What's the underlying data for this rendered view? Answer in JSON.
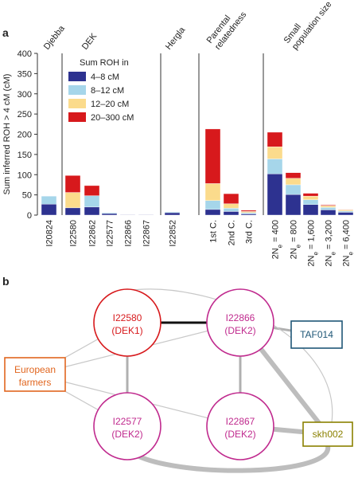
{
  "chart_data": {
    "type": "bar",
    "panel_label": "a",
    "ylabel": "Sum inferred ROH > 4 cM (cM)",
    "ylim": [
      0,
      400
    ],
    "yticks": [
      0,
      50,
      100,
      150,
      200,
      250,
      300,
      350,
      400
    ],
    "legend": {
      "title": "Sum ROH in",
      "placement": "inside-left",
      "entries": [
        {
          "label": "4–8 cM",
          "color": "#2d3290"
        },
        {
          "label": "8–12 cM",
          "color": "#a6d6ea"
        },
        {
          "label": "12–20 cM",
          "color": "#fbdb8c"
        },
        {
          "label": "20–300 cM",
          "color": "#d7191c"
        }
      ]
    },
    "groups": [
      {
        "name": "Djebba",
        "bars": [
          {
            "label": "I20824",
            "values": [
              27,
              20,
              0,
              0
            ]
          }
        ]
      },
      {
        "name": "DEK",
        "bars": [
          {
            "label": "I22580",
            "values": [
              18,
              0,
              38,
              42
            ]
          },
          {
            "label": "I22862",
            "values": [
              20,
              28,
              0,
              25
            ]
          },
          {
            "label": "I22577",
            "values": [
              4,
              2,
              0,
              0
            ]
          },
          {
            "label": "I22866",
            "values": [
              1,
              0,
              0,
              0
            ]
          },
          {
            "label": "I22867",
            "values": [
              1,
              0,
              0,
              0
            ]
          }
        ]
      },
      {
        "name": "Hergla",
        "bars": [
          {
            "label": "I22852",
            "values": [
              6,
              2,
              0,
              0
            ]
          }
        ]
      },
      {
        "name": "Parental relatedness",
        "bars": [
          {
            "label": "1st C.",
            "values": [
              14,
              22,
              42,
              135
            ]
          },
          {
            "label": "2nd C.",
            "values": [
              9,
              8,
              11,
              25
            ]
          },
          {
            "label": "3rd C.",
            "values": [
              3,
              3,
              3,
              3
            ]
          }
        ]
      },
      {
        "name": "Small population size",
        "bars": [
          {
            "label": "2N",
            "sub": "e",
            "tail": " = 400",
            "values": [
              102,
              37,
              30,
              36
            ]
          },
          {
            "label": "2N",
            "sub": "e",
            "tail": " = 800",
            "values": [
              51,
              24,
              16,
              14
            ]
          },
          {
            "label": "2N",
            "sub": "e",
            "tail": " = 1,600",
            "values": [
              26,
              12,
              9,
              7
            ]
          },
          {
            "label": "2N",
            "sub": "e",
            "tail": " = 3,200",
            "values": [
              13,
              6,
              4,
              2
            ]
          },
          {
            "label": "2N",
            "sub": "e",
            "tail": " = 6,400",
            "values": [
              7,
              3,
              3,
              1
            ]
          }
        ]
      }
    ]
  },
  "network": {
    "panel_label": "b",
    "nodes": [
      {
        "id": "I22580",
        "label": "I22580",
        "sub": "(DEK1)",
        "shape": "circle",
        "color": "#d7191c"
      },
      {
        "id": "I22866",
        "label": "I22866",
        "sub": "(DEK2)",
        "shape": "circle",
        "color": "#c02a8e"
      },
      {
        "id": "I22577",
        "label": "I22577",
        "sub": "(DEK2)",
        "shape": "circle",
        "color": "#c02a8e"
      },
      {
        "id": "I22867",
        "label": "I22867",
        "sub": "(DEK2)",
        "shape": "circle",
        "color": "#c02a8e"
      },
      {
        "id": "TAF014",
        "label": "TAF014",
        "sub": "",
        "shape": "box",
        "color": "#1f5777"
      },
      {
        "id": "EF",
        "label": "European",
        "sub": "farmers",
        "shape": "box",
        "color": "#e1661f"
      },
      {
        "id": "skh002",
        "label": "skh002",
        "sub": "",
        "shape": "box",
        "color": "#8a8000"
      }
    ],
    "edges": [
      {
        "from": "I22580",
        "to": "I22866",
        "strength": "strong"
      },
      {
        "from": "I22866",
        "to": "TAF014",
        "strength": "medium"
      },
      {
        "from": "I22866",
        "to": "I22867",
        "strength": "medium"
      },
      {
        "from": "I22580",
        "to": "I22577",
        "strength": "medium"
      },
      {
        "from": "I22866",
        "to": "skh002",
        "strength": "heavy"
      },
      {
        "from": "I22867",
        "to": "skh002",
        "strength": "heavy"
      },
      {
        "from": "I22577",
        "to": "skh002",
        "strength": "heavy"
      },
      {
        "from": "EF",
        "to": "I22580",
        "strength": "weak"
      },
      {
        "from": "EF",
        "to": "I22866",
        "strength": "weak"
      },
      {
        "from": "EF",
        "to": "I22867",
        "strength": "weak"
      },
      {
        "from": "EF",
        "to": "I22577",
        "strength": "weak"
      },
      {
        "from": "I22580",
        "to": "skh002",
        "strength": "weak"
      }
    ]
  }
}
